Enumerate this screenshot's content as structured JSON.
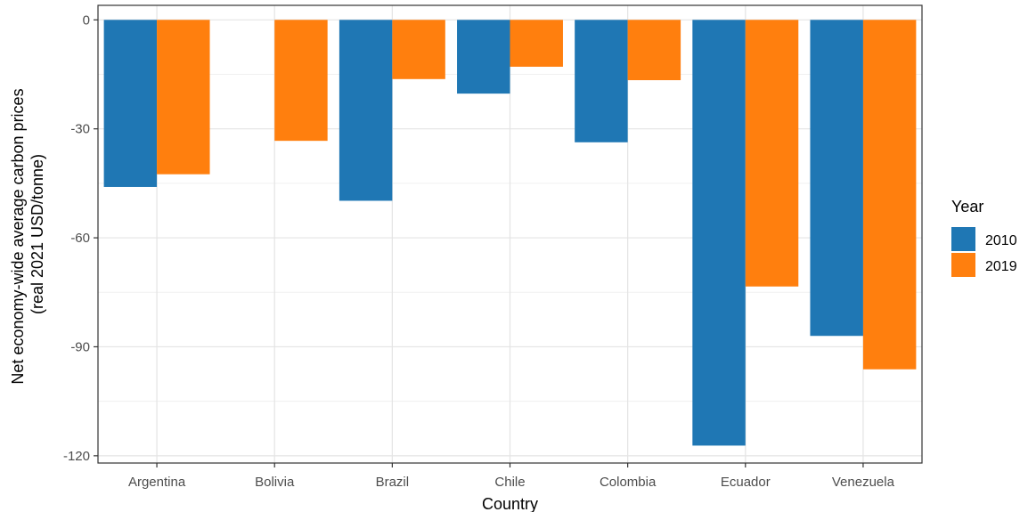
{
  "chart_data": {
    "type": "bar",
    "title": "",
    "xlabel": "Country",
    "ylabel_lines": [
      "Net economy-wide average carbon prices",
      "(real 2021 USD/tonne)"
    ],
    "categories": [
      "Argentina",
      "Bolivia",
      "Brazil",
      "Chile",
      "Colombia",
      "Ecuador",
      "Venezuela"
    ],
    "series": [
      {
        "name": "2010",
        "color": "#1f77b4",
        "values": [
          -46.0,
          null,
          -49.8,
          -20.3,
          -33.7,
          -117.2,
          -87.0
        ]
      },
      {
        "name": "2019",
        "color": "#ff7f0e",
        "values": [
          -42.5,
          -33.3,
          -16.3,
          -12.9,
          -16.6,
          -73.4,
          -96.2
        ]
      }
    ],
    "ylim": [
      -122,
      4
    ],
    "yticks": [
      0,
      -30,
      -60,
      -90,
      -120
    ],
    "yticks_minor": [
      -15,
      -45,
      -75,
      -105
    ],
    "grid": true,
    "legend": {
      "title": "Year",
      "position": "right"
    }
  }
}
